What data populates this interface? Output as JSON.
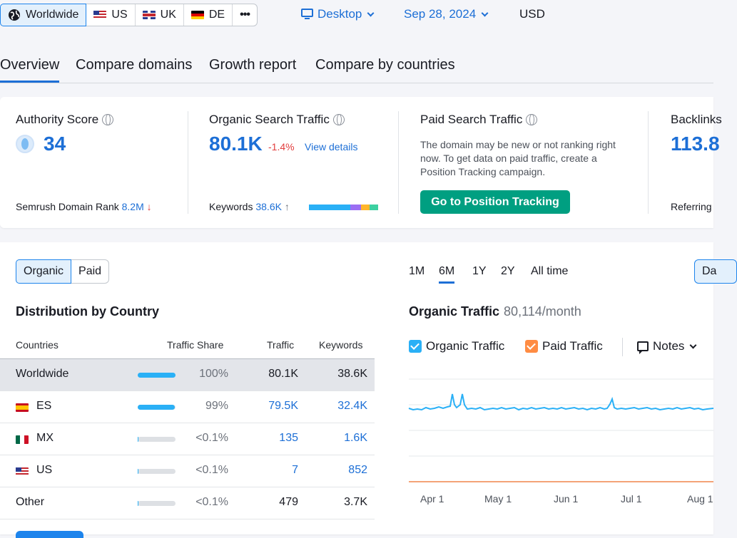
{
  "filters": {
    "regions": [
      {
        "label": "Worldwide",
        "icon": "globe-icon",
        "active": true
      },
      {
        "label": "US",
        "icon": "flag-us-icon"
      },
      {
        "label": "UK",
        "icon": "flag-uk-icon"
      },
      {
        "label": "DE",
        "icon": "flag-de-icon"
      }
    ],
    "more_label": "•••",
    "device": "Desktop",
    "date": "Sep 28, 2024",
    "currency": "USD"
  },
  "tabs": [
    "Overview",
    "Compare domains",
    "Growth report",
    "Compare by countries"
  ],
  "summary": {
    "authority": {
      "title": "Authority Score",
      "value": "34",
      "rank_label": "Semrush Domain Rank",
      "rank_value": "8.2M",
      "rank_arrow": "↓"
    },
    "organic": {
      "title": "Organic Search Traffic",
      "value": "80.1K",
      "delta": "-1.4%",
      "link": "View details",
      "kw_label": "Keywords",
      "kw_value": "38.6K",
      "kw_arrow": "↑"
    },
    "paid": {
      "title": "Paid Search Traffic",
      "description": "The domain may be new or not ranking right now. To get data on paid traffic, create a Position Tracking campaign.",
      "button": "Go to Position Tracking"
    },
    "backlinks": {
      "title": "Backlinks",
      "value": "113.8",
      "sub_label": "Referring"
    }
  },
  "distribution": {
    "toggle": [
      "Organic",
      "Paid"
    ],
    "title": "Distribution by Country",
    "columns": [
      "Countries",
      "Traffic Share",
      "Traffic",
      "Keywords"
    ],
    "rows": [
      {
        "country": "Worldwide",
        "share": "100%",
        "share_fraction": 1.0,
        "traffic": "80.1K",
        "keywords": "38.6K",
        "flag": "",
        "highlight": true,
        "linked": false
      },
      {
        "country": "ES",
        "share": "99%",
        "share_fraction": 0.99,
        "traffic": "79.5K",
        "keywords": "32.4K",
        "flag": "es",
        "highlight": false,
        "linked": true
      },
      {
        "country": "MX",
        "share": "<0.1%",
        "share_fraction": 0.001,
        "traffic": "135",
        "keywords": "1.6K",
        "flag": "mx",
        "highlight": false,
        "linked": true
      },
      {
        "country": "US",
        "share": "<0.1%",
        "share_fraction": 0.001,
        "traffic": "7",
        "keywords": "852",
        "flag": "us",
        "highlight": false,
        "linked": true
      },
      {
        "country": "Other",
        "share": "<0.1%",
        "share_fraction": 0.001,
        "traffic": "479",
        "keywords": "3.7K",
        "flag": "",
        "highlight": false,
        "linked": false
      }
    ]
  },
  "chart": {
    "periods": [
      "1M",
      "6M",
      "1Y",
      "2Y",
      "All time"
    ],
    "active_period": "6M",
    "right_button": "Da",
    "title": "Organic Traffic",
    "subtitle": "80,114/month",
    "legend": [
      {
        "label": "Organic Traffic",
        "color": "#2ab0f6",
        "checked": true
      },
      {
        "label": "Paid Traffic",
        "color": "#ff8c43",
        "checked": true
      }
    ],
    "notes_label": "Notes",
    "x_ticks": [
      "Apr 1",
      "May 1",
      "Jun 1",
      "Jul 1",
      "Aug 1"
    ]
  },
  "colors": {
    "accent": "#1d6fd6",
    "organic": "#2ab0f6",
    "paid": "#ff8c43",
    "cta": "#009f81",
    "negative": "#e23e3e"
  }
}
